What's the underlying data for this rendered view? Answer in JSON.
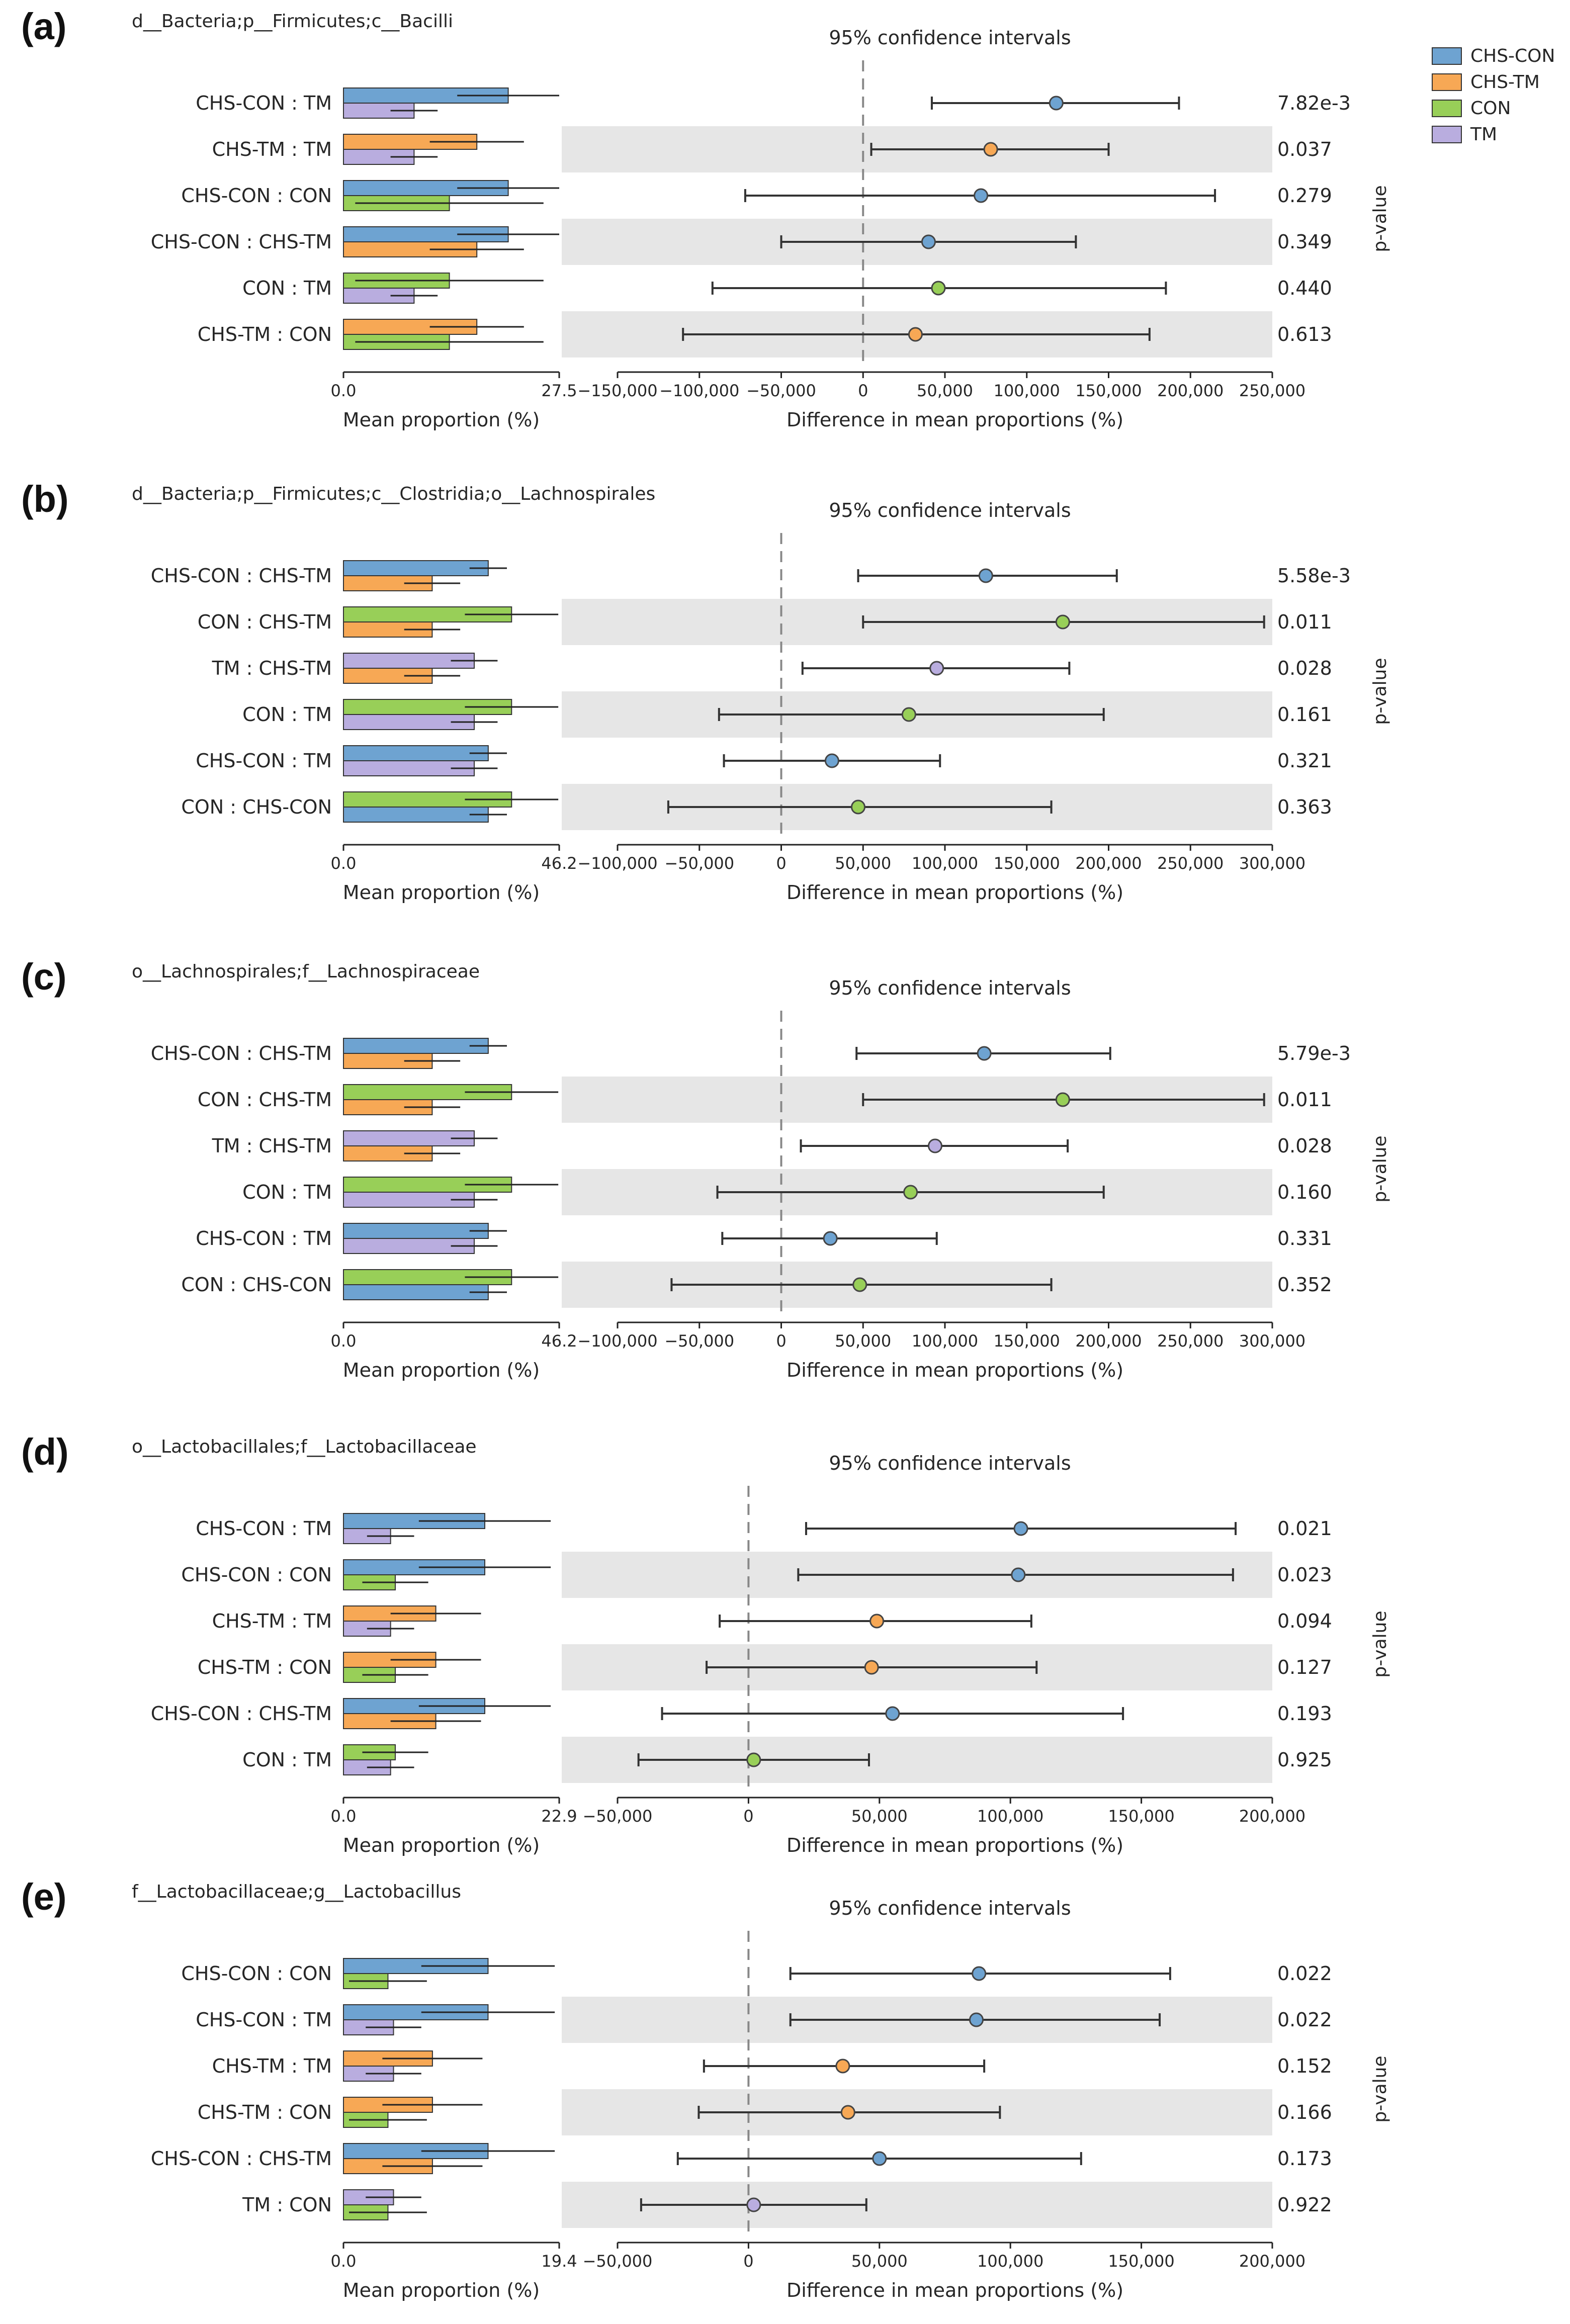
{
  "legend": [
    {
      "name": "CHS-CON",
      "color": "#6ea3d1"
    },
    {
      "name": "CHS-TM",
      "color": "#f7a855"
    },
    {
      "name": "CON",
      "color": "#98cf58"
    },
    {
      "name": "TM",
      "color": "#b9addf"
    }
  ],
  "common": {
    "ci_title": "95% confidence intervals",
    "mean_xlabel": "Mean proportion (%)",
    "diff_xlabel": "Difference in mean proportions (%)",
    "pvalue_label": "p-value"
  },
  "chart_data": [
    {
      "type": "extended error bar",
      "panel": "(a)",
      "title": "d__Bacteria;p__Firmicutes;c__Bacilli",
      "mean_ticks": [
        "0.0",
        "27.5"
      ],
      "mean_xlim": [
        0,
        27.5
      ],
      "diff_ticks": [
        "−150,000",
        "−100,000",
        "−50,000",
        "0",
        "50,000",
        "100,000",
        "150,000",
        "200,000",
        "250,000"
      ],
      "diff_tick_values": [
        -150000,
        -100000,
        -50000,
        0,
        50000,
        100000,
        150000,
        200000,
        250000
      ],
      "diff_xlim": [
        -150000,
        250000
      ],
      "rows": [
        {
          "label": "CHS-CON : TM",
          "g1": "CHS-CON",
          "g2": "TM",
          "m1": 21.0,
          "e1": 6.5,
          "m2": 9.0,
          "e2": 3.0,
          "diff": 118000,
          "lo": 42000,
          "hi": 193000,
          "dot": "CHS-CON",
          "p": "7.82e-3"
        },
        {
          "label": "CHS-TM : TM",
          "g1": "CHS-TM",
          "g2": "TM",
          "m1": 17.0,
          "e1": 6.0,
          "m2": 9.0,
          "e2": 3.0,
          "diff": 78000,
          "lo": 5000,
          "hi": 150000,
          "dot": "CHS-TM",
          "p": "0.037"
        },
        {
          "label": "CHS-CON : CON",
          "g1": "CHS-CON",
          "g2": "CON",
          "m1": 21.0,
          "e1": 6.5,
          "m2": 13.5,
          "e2": 12.0,
          "diff": 72000,
          "lo": -72000,
          "hi": 215000,
          "dot": "CHS-CON",
          "p": "0.279"
        },
        {
          "label": "CHS-CON : CHS-TM",
          "g1": "CHS-CON",
          "g2": "CHS-TM",
          "m1": 21.0,
          "e1": 6.5,
          "m2": 17.0,
          "e2": 6.0,
          "diff": 40000,
          "lo": -50000,
          "hi": 130000,
          "dot": "CHS-CON",
          "p": "0.349"
        },
        {
          "label": "CON : TM",
          "g1": "CON",
          "g2": "TM",
          "m1": 13.5,
          "e1": 12.0,
          "m2": 9.0,
          "e2": 3.0,
          "diff": 46000,
          "lo": -92000,
          "hi": 185000,
          "dot": "CON",
          "p": "0.440"
        },
        {
          "label": "CHS-TM : CON",
          "g1": "CHS-TM",
          "g2": "CON",
          "m1": 17.0,
          "e1": 6.0,
          "m2": 13.5,
          "e2": 12.0,
          "diff": 32000,
          "lo": -110000,
          "hi": 175000,
          "dot": "CHS-TM",
          "p": "0.613"
        }
      ]
    },
    {
      "type": "extended error bar",
      "panel": "(b)",
      "title": "d__Bacteria;p__Firmicutes;c__Clostridia;o__Lachnospirales",
      "mean_ticks": [
        "0.0",
        "46.2"
      ],
      "mean_xlim": [
        0,
        46.2
      ],
      "diff_ticks": [
        "−100,000",
        "−50,000",
        "0",
        "50,000",
        "100,000",
        "150,000",
        "200,000",
        "250,000",
        "300,000"
      ],
      "diff_tick_values": [
        -100000,
        -50000,
        0,
        50000,
        100000,
        150000,
        200000,
        250000,
        300000
      ],
      "diff_xlim": [
        -100000,
        300000
      ],
      "rows": [
        {
          "label": "CHS-CON : CHS-TM",
          "g1": "CHS-CON",
          "g2": "CHS-TM",
          "m1": 31.0,
          "e1": 4.0,
          "m2": 19.0,
          "e2": 6.0,
          "diff": 125000,
          "lo": 47000,
          "hi": 205000,
          "dot": "CHS-CON",
          "p": "5.58e-3"
        },
        {
          "label": "CON : CHS-TM",
          "g1": "CON",
          "g2": "CHS-TM",
          "m1": 36.0,
          "e1": 10.0,
          "m2": 19.0,
          "e2": 6.0,
          "diff": 172000,
          "lo": 50000,
          "hi": 295000,
          "dot": "CON",
          "p": "0.011"
        },
        {
          "label": "TM : CHS-TM",
          "g1": "TM",
          "g2": "CHS-TM",
          "m1": 28.0,
          "e1": 5.0,
          "m2": 19.0,
          "e2": 6.0,
          "diff": 95000,
          "lo": 13000,
          "hi": 176000,
          "dot": "TM",
          "p": "0.028"
        },
        {
          "label": "CON : TM",
          "g1": "CON",
          "g2": "TM",
          "m1": 36.0,
          "e1": 10.0,
          "m2": 28.0,
          "e2": 5.0,
          "diff": 78000,
          "lo": -38000,
          "hi": 197000,
          "dot": "CON",
          "p": "0.161"
        },
        {
          "label": "CHS-CON : TM",
          "g1": "CHS-CON",
          "g2": "TM",
          "m1": 31.0,
          "e1": 4.0,
          "m2": 28.0,
          "e2": 5.0,
          "diff": 31000,
          "lo": -35000,
          "hi": 97000,
          "dot": "CHS-CON",
          "p": "0.321"
        },
        {
          "label": "CON : CHS-CON",
          "g1": "CON",
          "g2": "CHS-CON",
          "m1": 36.0,
          "e1": 10.0,
          "m2": 31.0,
          "e2": 4.0,
          "diff": 47000,
          "lo": -69000,
          "hi": 165000,
          "dot": "CON",
          "p": "0.363"
        }
      ]
    },
    {
      "type": "extended error bar",
      "panel": "(c)",
      "title": "o__Lachnospirales;f__Lachnospiraceae",
      "mean_ticks": [
        "0.0",
        "46.2"
      ],
      "mean_xlim": [
        0,
        46.2
      ],
      "diff_ticks": [
        "−100,000",
        "−50,000",
        "0",
        "50,000",
        "100,000",
        "150,000",
        "200,000",
        "250,000",
        "300,000"
      ],
      "diff_tick_values": [
        -100000,
        -50000,
        0,
        50000,
        100000,
        150000,
        200000,
        250000,
        300000
      ],
      "diff_xlim": [
        -100000,
        300000
      ],
      "rows": [
        {
          "label": "CHS-CON : CHS-TM",
          "g1": "CHS-CON",
          "g2": "CHS-TM",
          "m1": 31.0,
          "e1": 4.0,
          "m2": 19.0,
          "e2": 6.0,
          "diff": 124000,
          "lo": 46000,
          "hi": 201000,
          "dot": "CHS-CON",
          "p": "5.79e-3"
        },
        {
          "label": "CON : CHS-TM",
          "g1": "CON",
          "g2": "CHS-TM",
          "m1": 36.0,
          "e1": 10.0,
          "m2": 19.0,
          "e2": 6.0,
          "diff": 172000,
          "lo": 50000,
          "hi": 295000,
          "dot": "CON",
          "p": "0.011"
        },
        {
          "label": "TM : CHS-TM",
          "g1": "TM",
          "g2": "CHS-TM",
          "m1": 28.0,
          "e1": 5.0,
          "m2": 19.0,
          "e2": 6.0,
          "diff": 94000,
          "lo": 12000,
          "hi": 175000,
          "dot": "TM",
          "p": "0.028"
        },
        {
          "label": "CON : TM",
          "g1": "CON",
          "g2": "TM",
          "m1": 36.0,
          "e1": 10.0,
          "m2": 28.0,
          "e2": 5.0,
          "diff": 79000,
          "lo": -39000,
          "hi": 197000,
          "dot": "CON",
          "p": "0.160"
        },
        {
          "label": "CHS-CON : TM",
          "g1": "CHS-CON",
          "g2": "TM",
          "m1": 31.0,
          "e1": 4.0,
          "m2": 28.0,
          "e2": 5.0,
          "diff": 30000,
          "lo": -36000,
          "hi": 95000,
          "dot": "CHS-CON",
          "p": "0.331"
        },
        {
          "label": "CON : CHS-CON",
          "g1": "CON",
          "g2": "CHS-CON",
          "m1": 36.0,
          "e1": 10.0,
          "m2": 31.0,
          "e2": 4.0,
          "diff": 48000,
          "lo": -67000,
          "hi": 165000,
          "dot": "CON",
          "p": "0.352"
        }
      ]
    },
    {
      "type": "extended error bar",
      "panel": "(d)",
      "title": "o__Lactobacillales;f__Lactobacillaceae",
      "mean_ticks": [
        "0.0",
        "22.9"
      ],
      "mean_xlim": [
        0,
        22.9
      ],
      "diff_ticks": [
        "−50,000",
        "0",
        "50,000",
        "100,000",
        "150,000",
        "200,000"
      ],
      "diff_tick_values": [
        -50000,
        0,
        50000,
        100000,
        150000,
        200000
      ],
      "diff_xlim": [
        -50000,
        200000
      ],
      "rows": [
        {
          "label": "CHS-CON : TM",
          "g1": "CHS-CON",
          "g2": "TM",
          "m1": 15.0,
          "e1": 7.0,
          "m2": 5.0,
          "e2": 2.5,
          "diff": 104000,
          "lo": 22000,
          "hi": 186000,
          "dot": "CHS-CON",
          "p": "0.021"
        },
        {
          "label": "CHS-CON : CON",
          "g1": "CHS-CON",
          "g2": "CON",
          "m1": 15.0,
          "e1": 7.0,
          "m2": 5.5,
          "e2": 3.5,
          "diff": 103000,
          "lo": 19000,
          "hi": 185000,
          "dot": "CHS-CON",
          "p": "0.023"
        },
        {
          "label": "CHS-TM : TM",
          "g1": "CHS-TM",
          "g2": "TM",
          "m1": 9.8,
          "e1": 4.8,
          "m2": 5.0,
          "e2": 2.5,
          "diff": 49000,
          "lo": -11000,
          "hi": 108000,
          "dot": "CHS-TM",
          "p": "0.094"
        },
        {
          "label": "CHS-TM : CON",
          "g1": "CHS-TM",
          "g2": "CON",
          "m1": 9.8,
          "e1": 4.8,
          "m2": 5.5,
          "e2": 3.5,
          "diff": 47000,
          "lo": -16000,
          "hi": 110000,
          "dot": "CHS-TM",
          "p": "0.127"
        },
        {
          "label": "CHS-CON : CHS-TM",
          "g1": "CHS-CON",
          "g2": "CHS-TM",
          "m1": 15.0,
          "e1": 7.0,
          "m2": 9.8,
          "e2": 4.8,
          "diff": 55000,
          "lo": -33000,
          "hi": 143000,
          "dot": "CHS-CON",
          "p": "0.193"
        },
        {
          "label": "CON : TM",
          "g1": "CON",
          "g2": "TM",
          "m1": 5.5,
          "e1": 3.5,
          "m2": 5.0,
          "e2": 2.5,
          "diff": 2000,
          "lo": -42000,
          "hi": 46000,
          "dot": "CON",
          "p": "0.925"
        }
      ]
    },
    {
      "type": "extended error bar",
      "panel": "(e)",
      "title": "f__Lactobacillaceae;g__Lactobacillus",
      "mean_ticks": [
        "0.0",
        "19.4"
      ],
      "mean_xlim": [
        0,
        19.4
      ],
      "diff_ticks": [
        "−50,000",
        "0",
        "50,000",
        "100,000",
        "150,000",
        "200,000"
      ],
      "diff_tick_values": [
        -50000,
        0,
        50000,
        100000,
        150000,
        200000
      ],
      "diff_xlim": [
        -50000,
        200000
      ],
      "rows": [
        {
          "label": "CHS-CON : CON",
          "g1": "CHS-CON",
          "g2": "CON",
          "m1": 13.0,
          "e1": 6.0,
          "m2": 4.0,
          "e2": 3.5,
          "diff": 88000,
          "lo": 16000,
          "hi": 161000,
          "dot": "CHS-CON",
          "p": "0.022"
        },
        {
          "label": "CHS-CON : TM",
          "g1": "CHS-CON",
          "g2": "TM",
          "m1": 13.0,
          "e1": 6.0,
          "m2": 4.5,
          "e2": 2.5,
          "diff": 87000,
          "lo": 16000,
          "hi": 157000,
          "dot": "CHS-CON",
          "p": "0.022"
        },
        {
          "label": "CHS-TM : TM",
          "g1": "CHS-TM",
          "g2": "TM",
          "m1": 8.0,
          "e1": 4.5,
          "m2": 4.5,
          "e2": 2.5,
          "diff": 36000,
          "lo": -17000,
          "hi": 90000,
          "dot": "CHS-TM",
          "p": "0.152"
        },
        {
          "label": "CHS-TM : CON",
          "g1": "CHS-TM",
          "g2": "CON",
          "m1": 8.0,
          "e1": 4.5,
          "m2": 4.0,
          "e2": 3.5,
          "diff": 38000,
          "lo": -19000,
          "hi": 96000,
          "dot": "CHS-TM",
          "p": "0.166"
        },
        {
          "label": "CHS-CON : CHS-TM",
          "g1": "CHS-CON",
          "g2": "CHS-TM",
          "m1": 13.0,
          "e1": 6.0,
          "m2": 8.0,
          "e2": 4.5,
          "diff": 50000,
          "lo": -27000,
          "hi": 127000,
          "dot": "CHS-CON",
          "p": "0.173"
        },
        {
          "label": "TM : CON",
          "g1": "TM",
          "g2": "CON",
          "m1": 4.5,
          "e1": 2.5,
          "m2": 4.0,
          "e2": 3.5,
          "diff": 2000,
          "lo": -41000,
          "hi": 45000,
          "dot": "TM",
          "p": "0.922"
        }
      ]
    }
  ]
}
